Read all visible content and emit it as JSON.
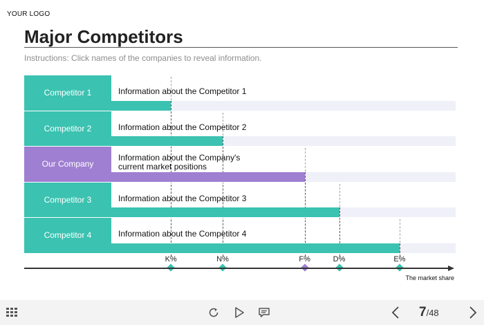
{
  "header": {
    "logo": "YOUR LOGO",
    "title": "Major Competitors",
    "instructions": "Instructions: Click names of the companies to reveal information."
  },
  "colors": {
    "competitor": "#3bc2b1",
    "our_company": "#9f7fd1",
    "track": "#eff0f8"
  },
  "rows": [
    {
      "name": "Competitor 1",
      "info": [
        "Information about the Competitor 1"
      ],
      "marker": "K%",
      "kind": "competitor"
    },
    {
      "name": "Competitor 2",
      "info": [
        "Information about the Competitor 2"
      ],
      "marker": "N%",
      "kind": "competitor"
    },
    {
      "name": "Our Company",
      "info": [
        "Information about the Company's",
        "current market positions"
      ],
      "marker": "F%",
      "kind": "our_company"
    },
    {
      "name": "Competitor 3",
      "info": [
        "Information about the Competitor 3"
      ],
      "marker": "D%",
      "kind": "competitor"
    },
    {
      "name": "Competitor 4",
      "info": [
        "Information about the Competitor 4"
      ],
      "marker": "E%",
      "kind": "competitor"
    }
  ],
  "axis": {
    "label": "The market share",
    "markers": [
      "K%",
      "N%",
      "F%",
      "D%",
      "E%"
    ]
  },
  "chart_data": {
    "type": "bar",
    "categories": [
      "Competitor 1",
      "Competitor 2",
      "Our Company",
      "Competitor 3",
      "Competitor 4"
    ],
    "values": [
      0.34,
      0.46,
      0.65,
      0.73,
      0.87
    ],
    "xlabel": "The market share",
    "tick_labels": [
      "K%",
      "N%",
      "F%",
      "D%",
      "E%"
    ],
    "xlim": [
      0,
      1
    ]
  },
  "footer": {
    "menu_icon": "grid-icon",
    "replay_icon": "replay-icon",
    "play_icon": "play-icon",
    "notes_icon": "notes-icon",
    "prev_icon": "chevron-left-icon",
    "next_icon": "chevron-right-icon",
    "current_page": "7",
    "page_separator": "/",
    "total_pages": "48"
  }
}
